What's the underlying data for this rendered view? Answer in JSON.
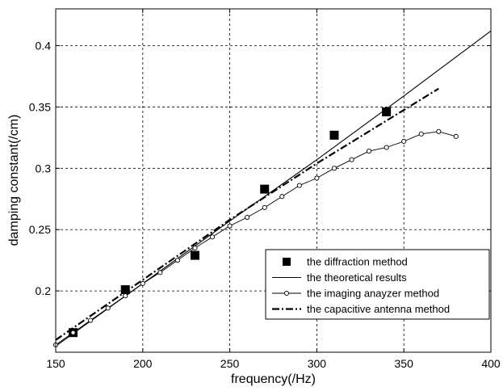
{
  "chart_data": {
    "type": "line",
    "title": "",
    "xlabel": "frequency(/Hz)",
    "ylabel": "damping constant(/cm)",
    "xlim": [
      150,
      400
    ],
    "ylim": [
      0.15,
      0.43
    ],
    "xticks": [
      150,
      200,
      250,
      300,
      350,
      400
    ],
    "xtick_labels": [
      "150",
      "200",
      "250",
      "300",
      "350",
      "400"
    ],
    "yticks": [
      0.2,
      0.25,
      0.3,
      0.35,
      0.4
    ],
    "ytick_labels": [
      "0.2",
      "0.25",
      "0.3",
      "0.35",
      "0.4"
    ],
    "grid": true,
    "legend_position": "bottom-right",
    "series": [
      {
        "name": "the diffraction method",
        "style": "square-markers",
        "color": "#000000",
        "x": [
          160,
          190,
          230,
          270,
          310,
          340
        ],
        "y": [
          0.166,
          0.201,
          0.229,
          0.283,
          0.327,
          0.346
        ]
      },
      {
        "name": "the theoretical results",
        "style": "solid-line",
        "color": "#000000",
        "x": [
          150,
          200,
          250,
          300,
          350,
          400
        ],
        "y": [
          0.155,
          0.206,
          0.257,
          0.307,
          0.359,
          0.412
        ]
      },
      {
        "name": "the imaging anayzer method",
        "style": "line-with-circle-markers",
        "color": "#000000",
        "x": [
          150,
          160,
          170,
          180,
          190,
          200,
          210,
          220,
          230,
          240,
          250,
          260,
          270,
          280,
          290,
          300,
          310,
          320,
          330,
          340,
          350,
          360,
          370,
          380
        ],
        "y": [
          0.156,
          0.166,
          0.176,
          0.186,
          0.196,
          0.206,
          0.215,
          0.225,
          0.235,
          0.244,
          0.253,
          0.26,
          0.268,
          0.277,
          0.286,
          0.292,
          0.3,
          0.307,
          0.314,
          0.317,
          0.322,
          0.328,
          0.33,
          0.326
        ]
      },
      {
        "name": "the capacitive antenna method",
        "style": "dash-dot-line",
        "color": "#000000",
        "x": [
          150,
          200,
          250,
          300,
          370
        ],
        "y": [
          0.16,
          0.209,
          0.258,
          0.304,
          0.365
        ]
      }
    ]
  }
}
